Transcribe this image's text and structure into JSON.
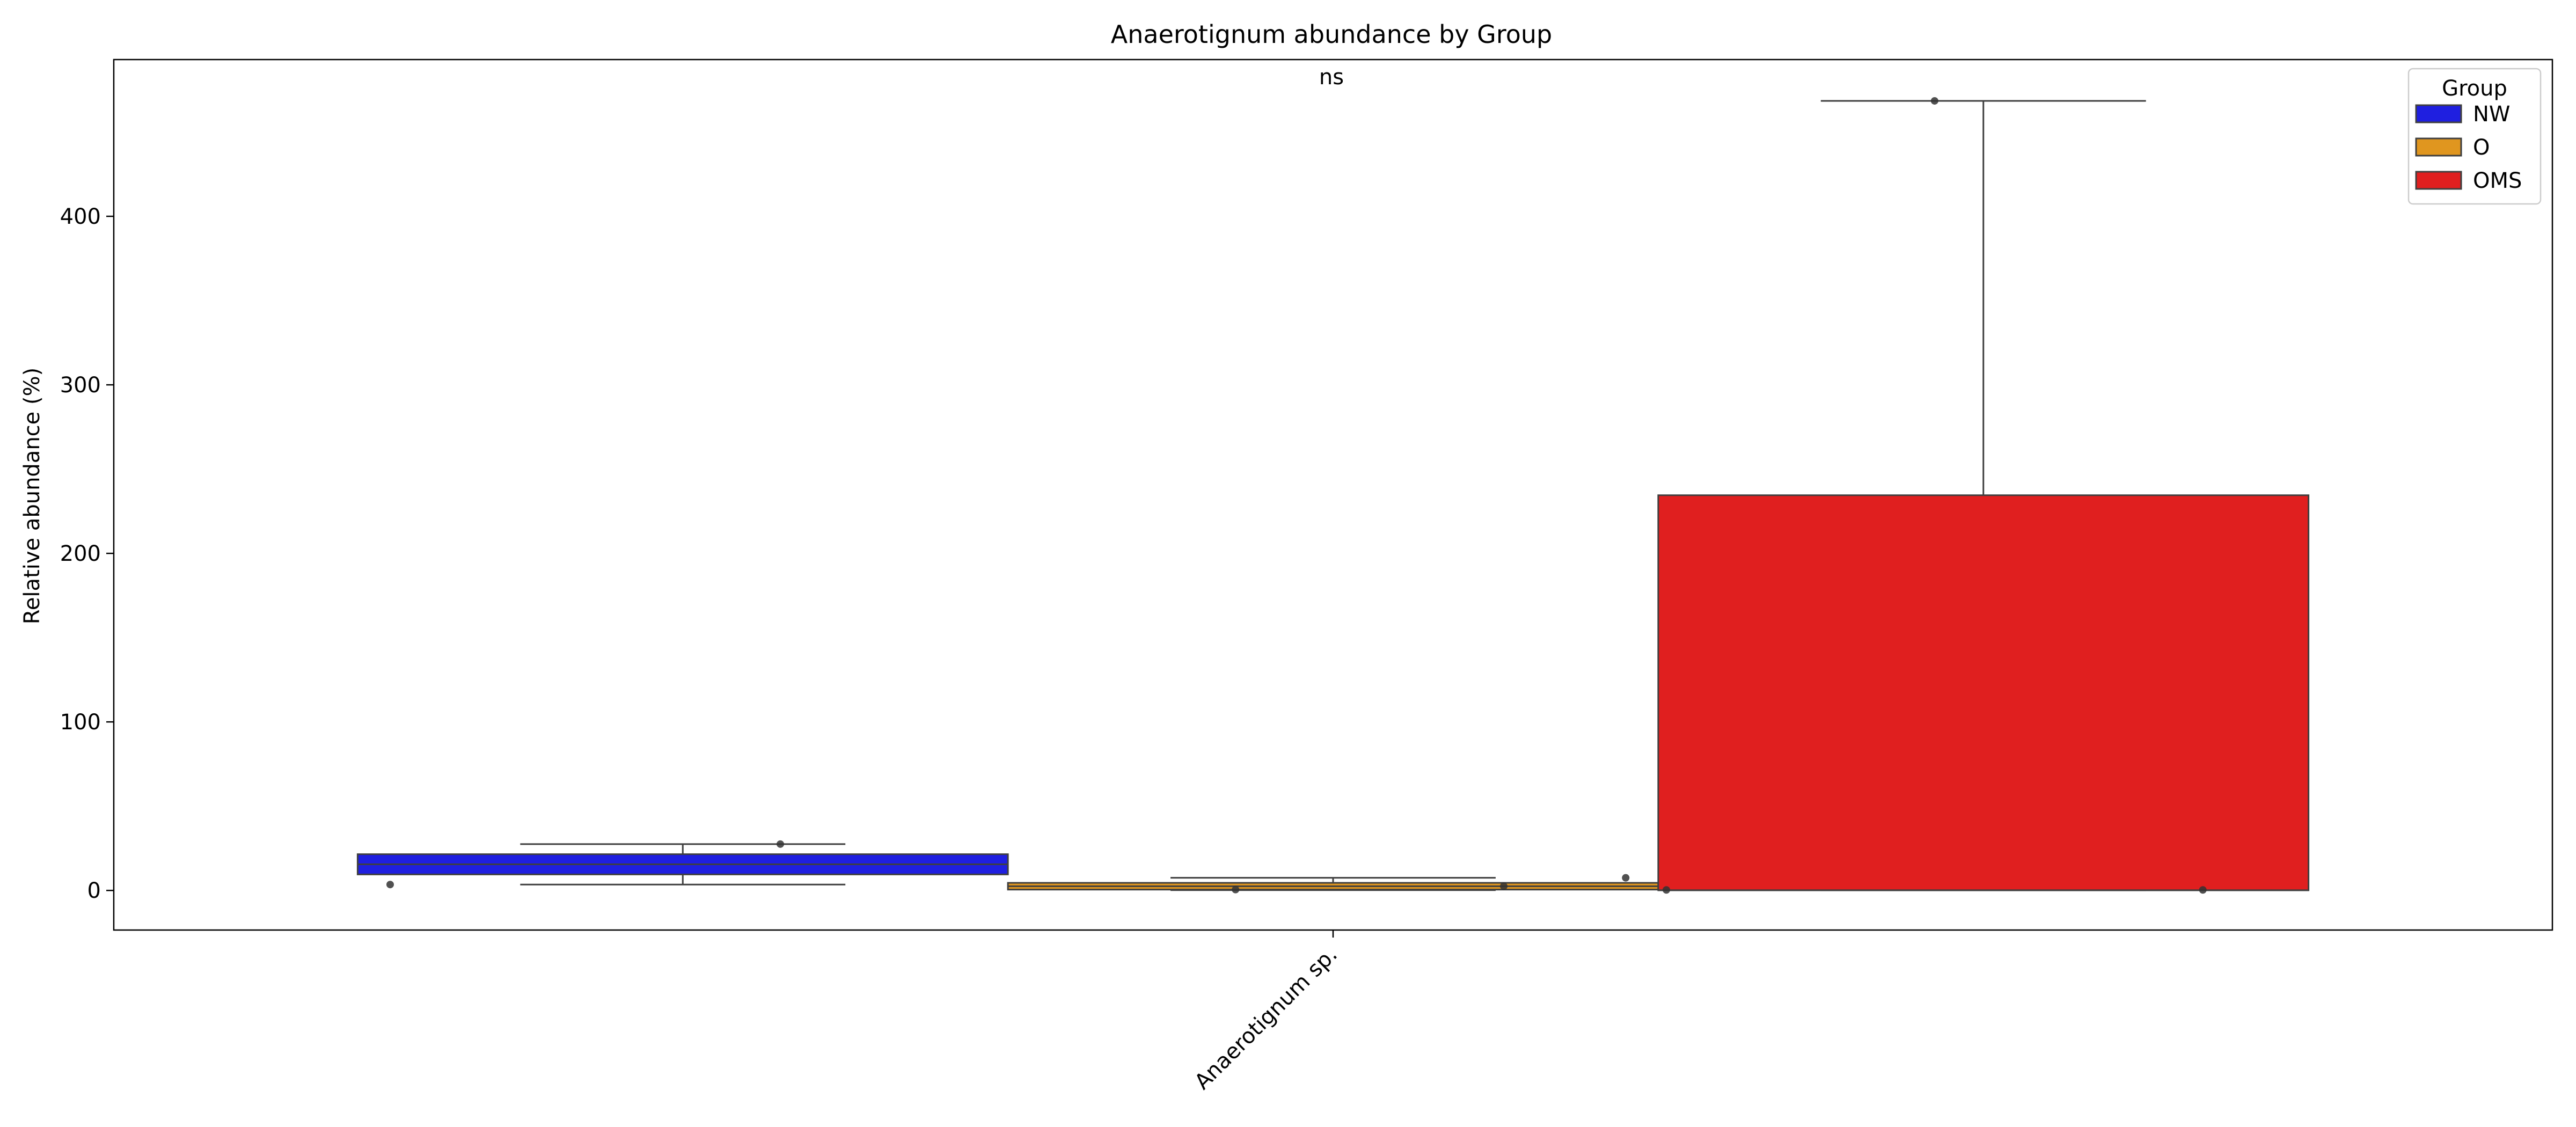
{
  "chart_data": {
    "type": "box",
    "title": "Anaerotignum abundance by Group",
    "xlabel": "",
    "ylabel": "Relative abundance (%)",
    "categories": [
      "Anaerotignum sp."
    ],
    "ylim": [
      -23.5,
      493
    ],
    "yticks": [
      0,
      100,
      200,
      300,
      400
    ],
    "annotation": "ns",
    "grid": false,
    "legend": {
      "title": "Group",
      "placement": "top-right"
    },
    "series": [
      {
        "name": "NW",
        "color": "#1f1fe0",
        "box": {
          "q1": 9.5,
          "median": 15.5,
          "q3": 21.5,
          "whisker_low": 3.5,
          "whisker_high": 27.5
        },
        "points": [
          {
            "dx": -0.12,
            "y": 3.5
          },
          {
            "dx": 0.04,
            "y": 27.5
          }
        ]
      },
      {
        "name": "O",
        "color": "#e0961f",
        "box": {
          "q1": 0.5,
          "median": 2.5,
          "q3": 4.5,
          "whisker_low": 0.2,
          "whisker_high": 7.5
        },
        "points": [
          {
            "dx": -0.04,
            "y": 0.5
          },
          {
            "dx": 0.07,
            "y": 2.5
          },
          {
            "dx": 0.12,
            "y": 7.5
          }
        ]
      },
      {
        "name": "OMS",
        "color": "#e01f1f",
        "box": {
          "q1": 0.1,
          "median": 0.1,
          "q3": 234.5,
          "whisker_low": 0.1,
          "whisker_high": 468.5
        },
        "points": [
          {
            "dx": -0.02,
            "y": 468.5
          },
          {
            "dx": -0.13,
            "y": 0.3
          },
          {
            "dx": 0.09,
            "y": 0.3
          }
        ]
      }
    ]
  }
}
